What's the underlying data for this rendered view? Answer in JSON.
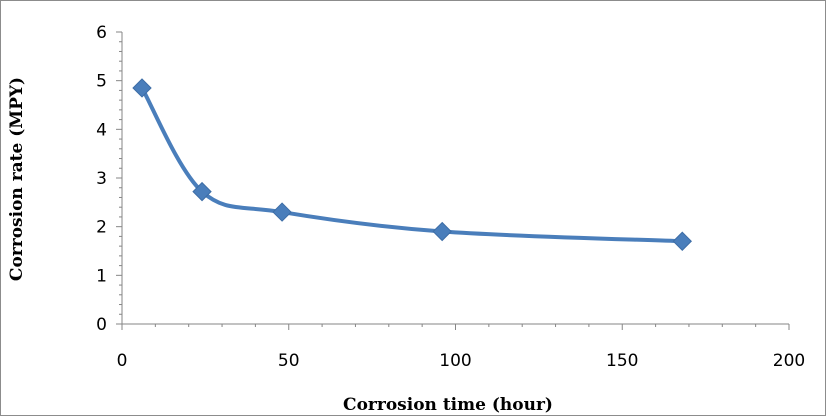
{
  "chart_data": {
    "type": "scatter",
    "title": "",
    "xlabel": "Corrosion time (hour)",
    "ylabel": "Corrosion rate (MPY)",
    "xlim": [
      0,
      200
    ],
    "ylim": [
      0,
      6
    ],
    "x_ticks": [
      "0",
      "50",
      "100",
      "150",
      "200"
    ],
    "y_ticks": [
      "0",
      "1",
      "2",
      "3",
      "4",
      "5",
      "6"
    ],
    "grid": false,
    "legend": "none",
    "smoothed_line": true,
    "marker": "diamond",
    "series_color": "#4a7ebb",
    "series": [
      {
        "x": [
          6,
          24,
          48,
          96,
          168
        ],
        "y": [
          4.85,
          2.72,
          2.3,
          1.9,
          1.7
        ]
      }
    ]
  }
}
